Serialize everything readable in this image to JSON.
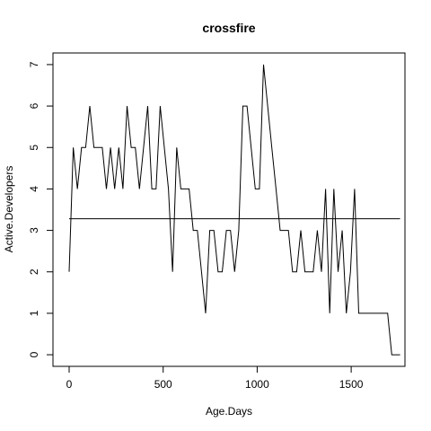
{
  "chart_data": {
    "type": "line",
    "title": "crossfire",
    "xlabel": "Age.Days",
    "ylabel": "Active.Developers",
    "xlim": [
      -86,
      1786
    ],
    "ylim": [
      -0.28,
      7.28
    ],
    "xticks": [
      0,
      500,
      1000,
      1500
    ],
    "yticks": [
      0,
      1,
      2,
      3,
      4,
      5,
      6,
      7
    ],
    "grid": false,
    "legend": "none",
    "series": [
      {
        "x": [
          0,
          22,
          44,
          66,
          88,
          110,
          132,
          154,
          176,
          198,
          220,
          242,
          264,
          286,
          308,
          330,
          352,
          374,
          396,
          418,
          440,
          462,
          484,
          506,
          528,
          550,
          572,
          594,
          616,
          638,
          660,
          682,
          704,
          726,
          748,
          770,
          792,
          814,
          836,
          858,
          880,
          902,
          924,
          946,
          968,
          990,
          1012,
          1034,
          1056,
          1078,
          1100,
          1122,
          1144,
          1166,
          1188,
          1210,
          1232,
          1254,
          1276,
          1298,
          1320,
          1342,
          1364,
          1386,
          1408,
          1430,
          1452,
          1474,
          1496,
          1518,
          1540,
          1562,
          1584,
          1606,
          1628,
          1650,
          1672,
          1694,
          1716,
          1738,
          1760
        ],
        "values": [
          2,
          5,
          4,
          5,
          5,
          6,
          5,
          5,
          5,
          4,
          5,
          4,
          5,
          4,
          6,
          5,
          5,
          4,
          5,
          6,
          4,
          4,
          6,
          5,
          4,
          2,
          5,
          4,
          4,
          4,
          3,
          3,
          2,
          1,
          3,
          3,
          2,
          2,
          3,
          3,
          2,
          3,
          6,
          6,
          5,
          4,
          4,
          7,
          6,
          5,
          4,
          3,
          3,
          3,
          2,
          2,
          3,
          2,
          2,
          2,
          3,
          2,
          4,
          1,
          4,
          2,
          3,
          1,
          2,
          4,
          1,
          1,
          1,
          1,
          1,
          1,
          1,
          1,
          0,
          0,
          0
        ]
      }
    ],
    "reference_line": {
      "y": 3.28,
      "x_range": [
        0,
        1760
      ]
    }
  }
}
